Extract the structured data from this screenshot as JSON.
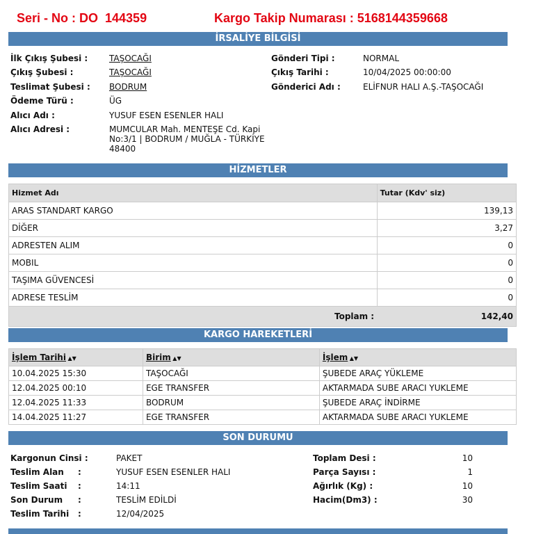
{
  "header": {
    "serial": "Seri - No : DO  144359",
    "tracking": "Kargo Takip Numarası : 5168144359668"
  },
  "waybill": {
    "title": "İRSALİYE BİLGİSİ",
    "left": [
      {
        "label": "İlk Çıkış Şubesi :",
        "value": "TAŞOCAĞI"
      },
      {
        "label": "Çıkış Şubesi :",
        "value": "TAŞOCAĞI"
      },
      {
        "label": "Teslimat Şubesi :",
        "value": "BODRUM"
      },
      {
        "label": "Ödeme Türü :",
        "value": "ÜG"
      },
      {
        "label": "Alıcı Adı :",
        "value": "YUSUF ESEN ESENLER HALI"
      },
      {
        "label": "Alıcı Adresi :",
        "value": "MUMCULAR Mah. MENTEŞE Cd.  Kapi No:3/1 |   BODRUM / MUĞLA - TÜRKİYE 48400"
      }
    ],
    "right": [
      {
        "label": "Gönderi Tipi :",
        "value": "NORMAL"
      },
      {
        "label": "Çıkış Tarihi :",
        "value": "10/04/2025 00:00:00"
      },
      {
        "label": "Gönderici Adı :",
        "value": "ELİFNUR HALI A.Ş.-TAŞOCAĞI"
      }
    ]
  },
  "services": {
    "title": "HİZMETLER",
    "columns": [
      "Hizmet Adı",
      "Tutar (Kdv' siz)"
    ],
    "rows": [
      [
        "ARAS STANDART KARGO",
        "139,13"
      ],
      [
        "DİĞER",
        "3,27"
      ],
      [
        "ADRESTEN ALIM",
        "0"
      ],
      [
        "MOBIL",
        "0"
      ],
      [
        "TAŞIMA GÜVENCESİ",
        "0"
      ],
      [
        "ADRESE TESLİM",
        "0"
      ]
    ],
    "total_label": "Toplam :",
    "total": "142,40"
  },
  "movements": {
    "title": "KARGO HAREKETLERİ",
    "columns": [
      "İşlem Tarihi",
      "Birim",
      "İşlem"
    ],
    "rows": [
      [
        "10.04.2025 15:30",
        "TAŞOCAĞI",
        "ŞUBEDE ARAÇ YÜKLEME"
      ],
      [
        "12.04.2025 00:10",
        "EGE TRANSFER",
        "AKTARMADA SUBE ARACI YUKLEME"
      ],
      [
        "12.04.2025 11:33",
        "BODRUM",
        "ŞUBEDE ARAÇ İNDİRME"
      ],
      [
        "14.04.2025 11:27",
        "EGE TRANSFER",
        "AKTARMADA SUBE ARACI YUKLEME"
      ]
    ]
  },
  "status": {
    "title": "SON DURUMU",
    "left": [
      {
        "label": "Kargonun Cinsi :",
        "colon": "",
        "value": "PAKET"
      },
      {
        "label": "Teslim Alan",
        "colon": ":",
        "value": "YUSUF ESEN ESENLER HALI"
      },
      {
        "label": "Teslim Saati",
        "colon": ":",
        "value": "14:11"
      },
      {
        "label": "Son Durum",
        "colon": ":",
        "value": "TESLİM EDİLDİ"
      },
      {
        "label": "Teslim Tarihi",
        "colon": ":",
        "value": "12/04/2025"
      }
    ],
    "right": [
      {
        "label": "Toplam Desi :",
        "value": "10"
      },
      {
        "label": "Parça Sayısı :",
        "value": "1"
      },
      {
        "label": "Ağırlık (Kg) :",
        "value": "10"
      },
      {
        "label": "Hacim(Dm3) :",
        "value": "30"
      }
    ]
  }
}
